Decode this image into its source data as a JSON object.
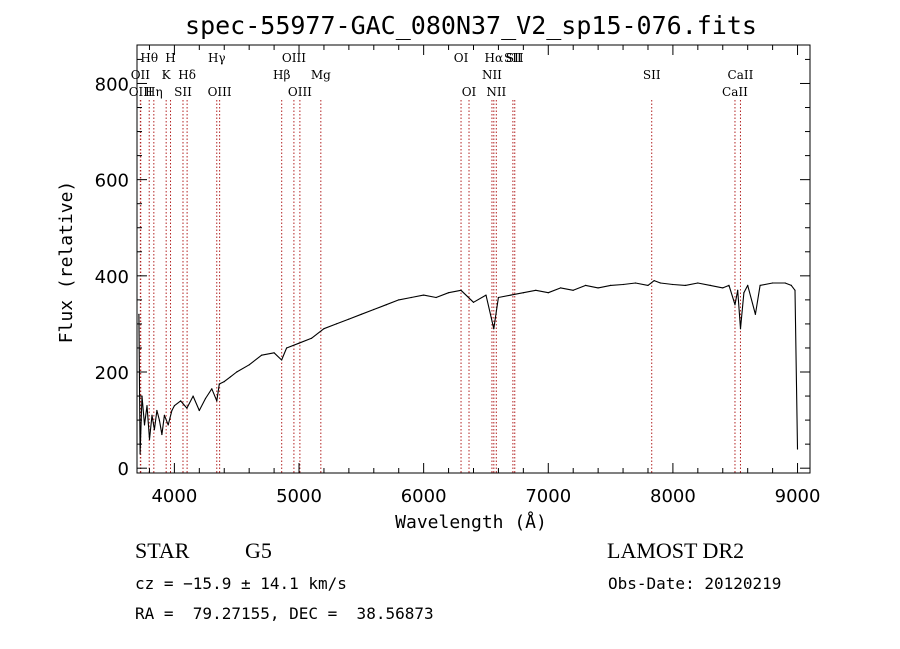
{
  "chart_data": {
    "type": "line",
    "title": "spec-55977-GAC_080N37_V2_sp15-076.fits",
    "xlabel": "Wavelength (Å)",
    "ylabel": "Flux (relative)",
    "xlim": [
      3700,
      9100
    ],
    "ylim": [
      -10,
      880
    ],
    "xticks": [
      4000,
      5000,
      6000,
      7000,
      8000,
      9000
    ],
    "yticks": [
      0,
      200,
      400,
      600,
      800
    ],
    "grid": false,
    "line_color": "#000000",
    "marker_color": "#b22222",
    "series": [
      {
        "x": [
          3715,
          3725,
          3740,
          3760,
          3780,
          3800,
          3820,
          3840,
          3860,
          3880,
          3900,
          3920,
          3950,
          3980,
          4000,
          4050,
          4100,
          4150,
          4200,
          4250,
          4300,
          4340,
          4360,
          4400,
          4450,
          4500,
          4600,
          4700,
          4800,
          4860,
          4900,
          5000,
          5100,
          5200,
          5300,
          5400,
          5500,
          5600,
          5700,
          5800,
          5900,
          6000,
          6100,
          6200,
          6300,
          6400,
          6500,
          6563,
          6600,
          6700,
          6800,
          6900,
          7000,
          7100,
          7200,
          7300,
          7400,
          7500,
          7600,
          7700,
          7800,
          7850,
          7900,
          8000,
          8100,
          8200,
          8300,
          8400,
          8450,
          8498,
          8520,
          8542,
          8570,
          8600,
          8662,
          8700,
          8800,
          8900,
          8950,
          8980,
          9000
        ],
        "y": [
          320,
          30,
          150,
          90,
          130,
          60,
          110,
          80,
          120,
          100,
          70,
          110,
          90,
          120,
          130,
          140,
          125,
          150,
          120,
          145,
          165,
          140,
          175,
          180,
          190,
          200,
          215,
          235,
          240,
          225,
          250,
          260,
          270,
          290,
          300,
          310,
          320,
          330,
          340,
          350,
          355,
          360,
          355,
          365,
          370,
          345,
          360,
          290,
          355,
          360,
          365,
          370,
          365,
          375,
          370,
          380,
          375,
          380,
          382,
          385,
          380,
          390,
          385,
          382,
          380,
          385,
          380,
          375,
          380,
          340,
          370,
          290,
          365,
          380,
          320,
          380,
          385,
          385,
          380,
          370,
          40
        ]
      }
    ],
    "line_markers": [
      {
        "wl": 3727,
        "label": "OII",
        "row": 1
      },
      {
        "wl": 3730,
        "label": "OIII",
        "row": 2
      },
      {
        "wl": 3798,
        "label": "Hθ",
        "row": 0
      },
      {
        "wl": 3835,
        "label": "Hη",
        "row": 2
      },
      {
        "wl": 3934,
        "label": "K",
        "row": 1
      },
      {
        "wl": 3969,
        "label": "H",
        "row": 0
      },
      {
        "wl": 4069,
        "label": "SII",
        "row": 2
      },
      {
        "wl": 4102,
        "label": "Hδ",
        "row": 1
      },
      {
        "wl": 4340,
        "label": "Hγ",
        "row": 0
      },
      {
        "wl": 4363,
        "label": "OIII",
        "row": 2
      },
      {
        "wl": 4861,
        "label": "Hβ",
        "row": 1
      },
      {
        "wl": 4959,
        "label": "OIII",
        "row": 0
      },
      {
        "wl": 5007,
        "label": "OIII",
        "row": 2
      },
      {
        "wl": 5175,
        "label": "Mg",
        "row": 1
      },
      {
        "wl": 6300,
        "label": "OI",
        "row": 0
      },
      {
        "wl": 6364,
        "label": "OI",
        "row": 2
      },
      {
        "wl": 6548,
        "label": "NII",
        "row": 1
      },
      {
        "wl": 6563,
        "label": "Hα",
        "row": 0
      },
      {
        "wl": 6583,
        "label": "NII",
        "row": 2
      },
      {
        "wl": 6716,
        "label": "SII",
        "row": 0
      },
      {
        "wl": 6731,
        "label": "SII",
        "row": 0
      },
      {
        "wl": 7830,
        "label": "SII",
        "row": 1
      },
      {
        "wl": 8498,
        "label": "CaII",
        "row": 2
      },
      {
        "wl": 8542,
        "label": "CaII",
        "row": 1
      }
    ]
  },
  "info": {
    "object_class": "STAR",
    "subclass": "G5",
    "survey": "LAMOST DR2",
    "cz": "cz = −15.9 ± 14.1 km/s",
    "obs_date": "Obs-Date: 20120219",
    "radec": "RA =  79.27155, DEC =  38.56873"
  }
}
